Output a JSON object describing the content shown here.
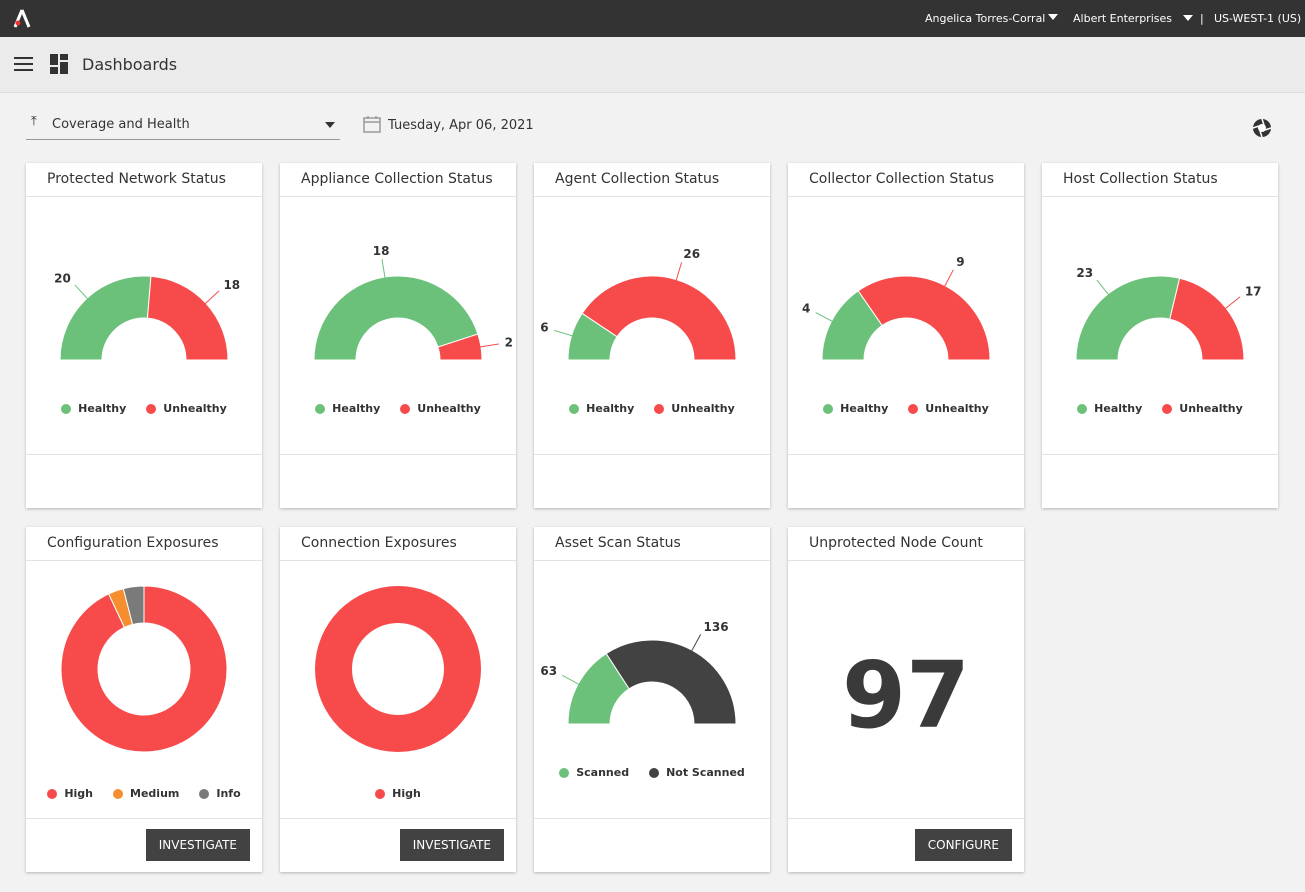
{
  "top_bar": {
    "user": "Angelica Torres-Corral",
    "org": "Albert Enterprises",
    "separator": "|",
    "region": "US-WEST-1 (US)"
  },
  "header": {
    "title": "Dashboards"
  },
  "toolbar": {
    "dashboard": "Coverage and Health",
    "date": "Tuesday, Apr 06, 2021"
  },
  "cards": [
    {
      "title": "Protected Network Status",
      "chart_data": {
        "type": "gauge",
        "categories": [
          "Healthy",
          "Unhealthy"
        ],
        "values": [
          20,
          18
        ],
        "colors": [
          "#6cc17a",
          "#f74b4b"
        ]
      }
    },
    {
      "title": "Appliance Collection Status",
      "chart_data": {
        "type": "gauge",
        "categories": [
          "Healthy",
          "Unhealthy"
        ],
        "values": [
          18,
          2
        ],
        "colors": [
          "#6cc17a",
          "#f74b4b"
        ]
      }
    },
    {
      "title": "Agent Collection Status",
      "chart_data": {
        "type": "gauge",
        "categories": [
          "Healthy",
          "Unhealthy"
        ],
        "values": [
          6,
          26
        ],
        "colors": [
          "#6cc17a",
          "#f74b4b"
        ]
      }
    },
    {
      "title": "Collector Collection Status",
      "chart_data": {
        "type": "gauge",
        "categories": [
          "Healthy",
          "Unhealthy"
        ],
        "values": [
          4,
          9
        ],
        "colors": [
          "#6cc17a",
          "#f74b4b"
        ]
      }
    },
    {
      "title": "Host Collection Status",
      "chart_data": {
        "type": "gauge",
        "categories": [
          "Healthy",
          "Unhealthy"
        ],
        "values": [
          23,
          17
        ],
        "colors": [
          "#6cc17a",
          "#f74b4b"
        ]
      }
    },
    {
      "title": "Configuration Exposures",
      "chart_data": {
        "type": "donut",
        "categories": [
          "High",
          "Medium",
          "Info"
        ],
        "values": [
          93,
          3,
          4
        ],
        "colors": [
          "#f74b4b",
          "#f68e2f",
          "#7a7a7a"
        ]
      },
      "button": "INVESTIGATE"
    },
    {
      "title": "Connection Exposures",
      "chart_data": {
        "type": "donut",
        "categories": [
          "High"
        ],
        "values": [
          100
        ],
        "colors": [
          "#f74b4b"
        ]
      },
      "button": "INVESTIGATE"
    },
    {
      "title": "Asset Scan Status",
      "chart_data": {
        "type": "gauge",
        "categories": [
          "Scanned",
          "Not Scanned"
        ],
        "values": [
          63,
          136
        ],
        "colors": [
          "#6cc17a",
          "#424242"
        ]
      }
    },
    {
      "title": "Unprotected Node Count",
      "value": 97,
      "button": "CONFIGURE"
    }
  ]
}
